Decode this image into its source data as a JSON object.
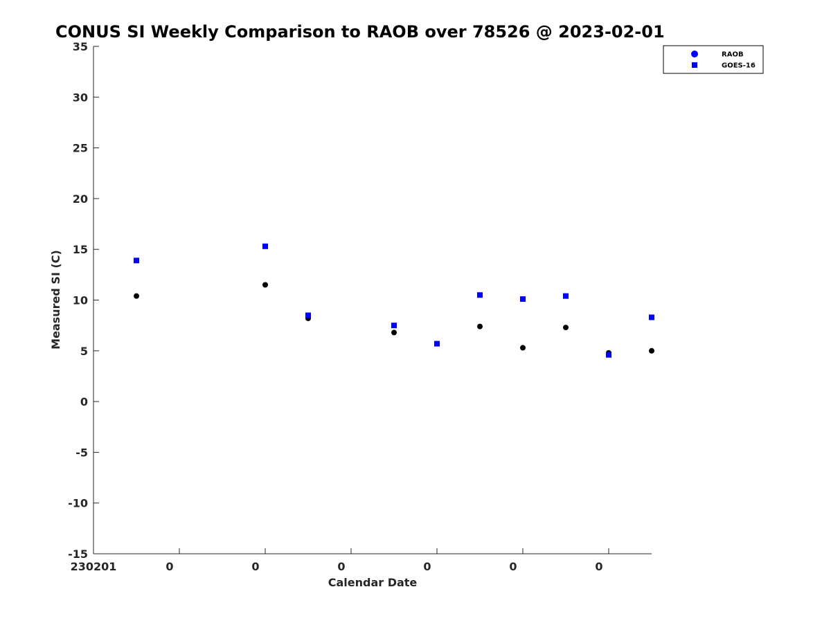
{
  "chart_data": {
    "type": "scatter",
    "title": "CONUS SI Weekly Comparison to RAOB over 78526 @ 2023-02-01",
    "xlabel": "Calendar Date",
    "ylabel": "Measured SI (C)",
    "xlim": [
      0,
      6.5
    ],
    "ylim": [
      -15,
      35
    ],
    "x_ticks": [
      0,
      1,
      2,
      3,
      4,
      5,
      6
    ],
    "x_tick_labels": [
      "230201",
      "0",
      "0",
      "0",
      "0",
      "0",
      "0"
    ],
    "y_ticks": [
      35,
      30,
      25,
      20,
      15,
      10,
      5,
      0,
      -5,
      -10,
      -15
    ],
    "y_tick_labels": [
      "35",
      "30",
      "25",
      "20",
      "15",
      "10",
      "5",
      "0",
      "-5",
      "-10",
      "-15"
    ],
    "grid": false,
    "legend_position": "top-right",
    "series": [
      {
        "name": "RAOB",
        "marker": "circle",
        "color": "#000000",
        "legend_color": "#0000ff",
        "x": [
          0.5,
          2.0,
          2.5,
          3.5,
          4.0,
          4.5,
          5.0,
          5.5,
          6.0,
          6.5
        ],
        "y": [
          10.4,
          11.5,
          8.2,
          6.8,
          5.7,
          7.4,
          5.3,
          7.3,
          4.8,
          5.0
        ]
      },
      {
        "name": "GOES-16",
        "marker": "square",
        "color": "#0000ff",
        "x": [
          0.5,
          2.0,
          2.5,
          3.5,
          4.0,
          4.5,
          5.0,
          5.5,
          6.0,
          6.5
        ],
        "y": [
          13.9,
          15.3,
          8.5,
          7.5,
          5.7,
          10.5,
          10.1,
          10.4,
          4.6,
          8.3
        ]
      }
    ]
  }
}
